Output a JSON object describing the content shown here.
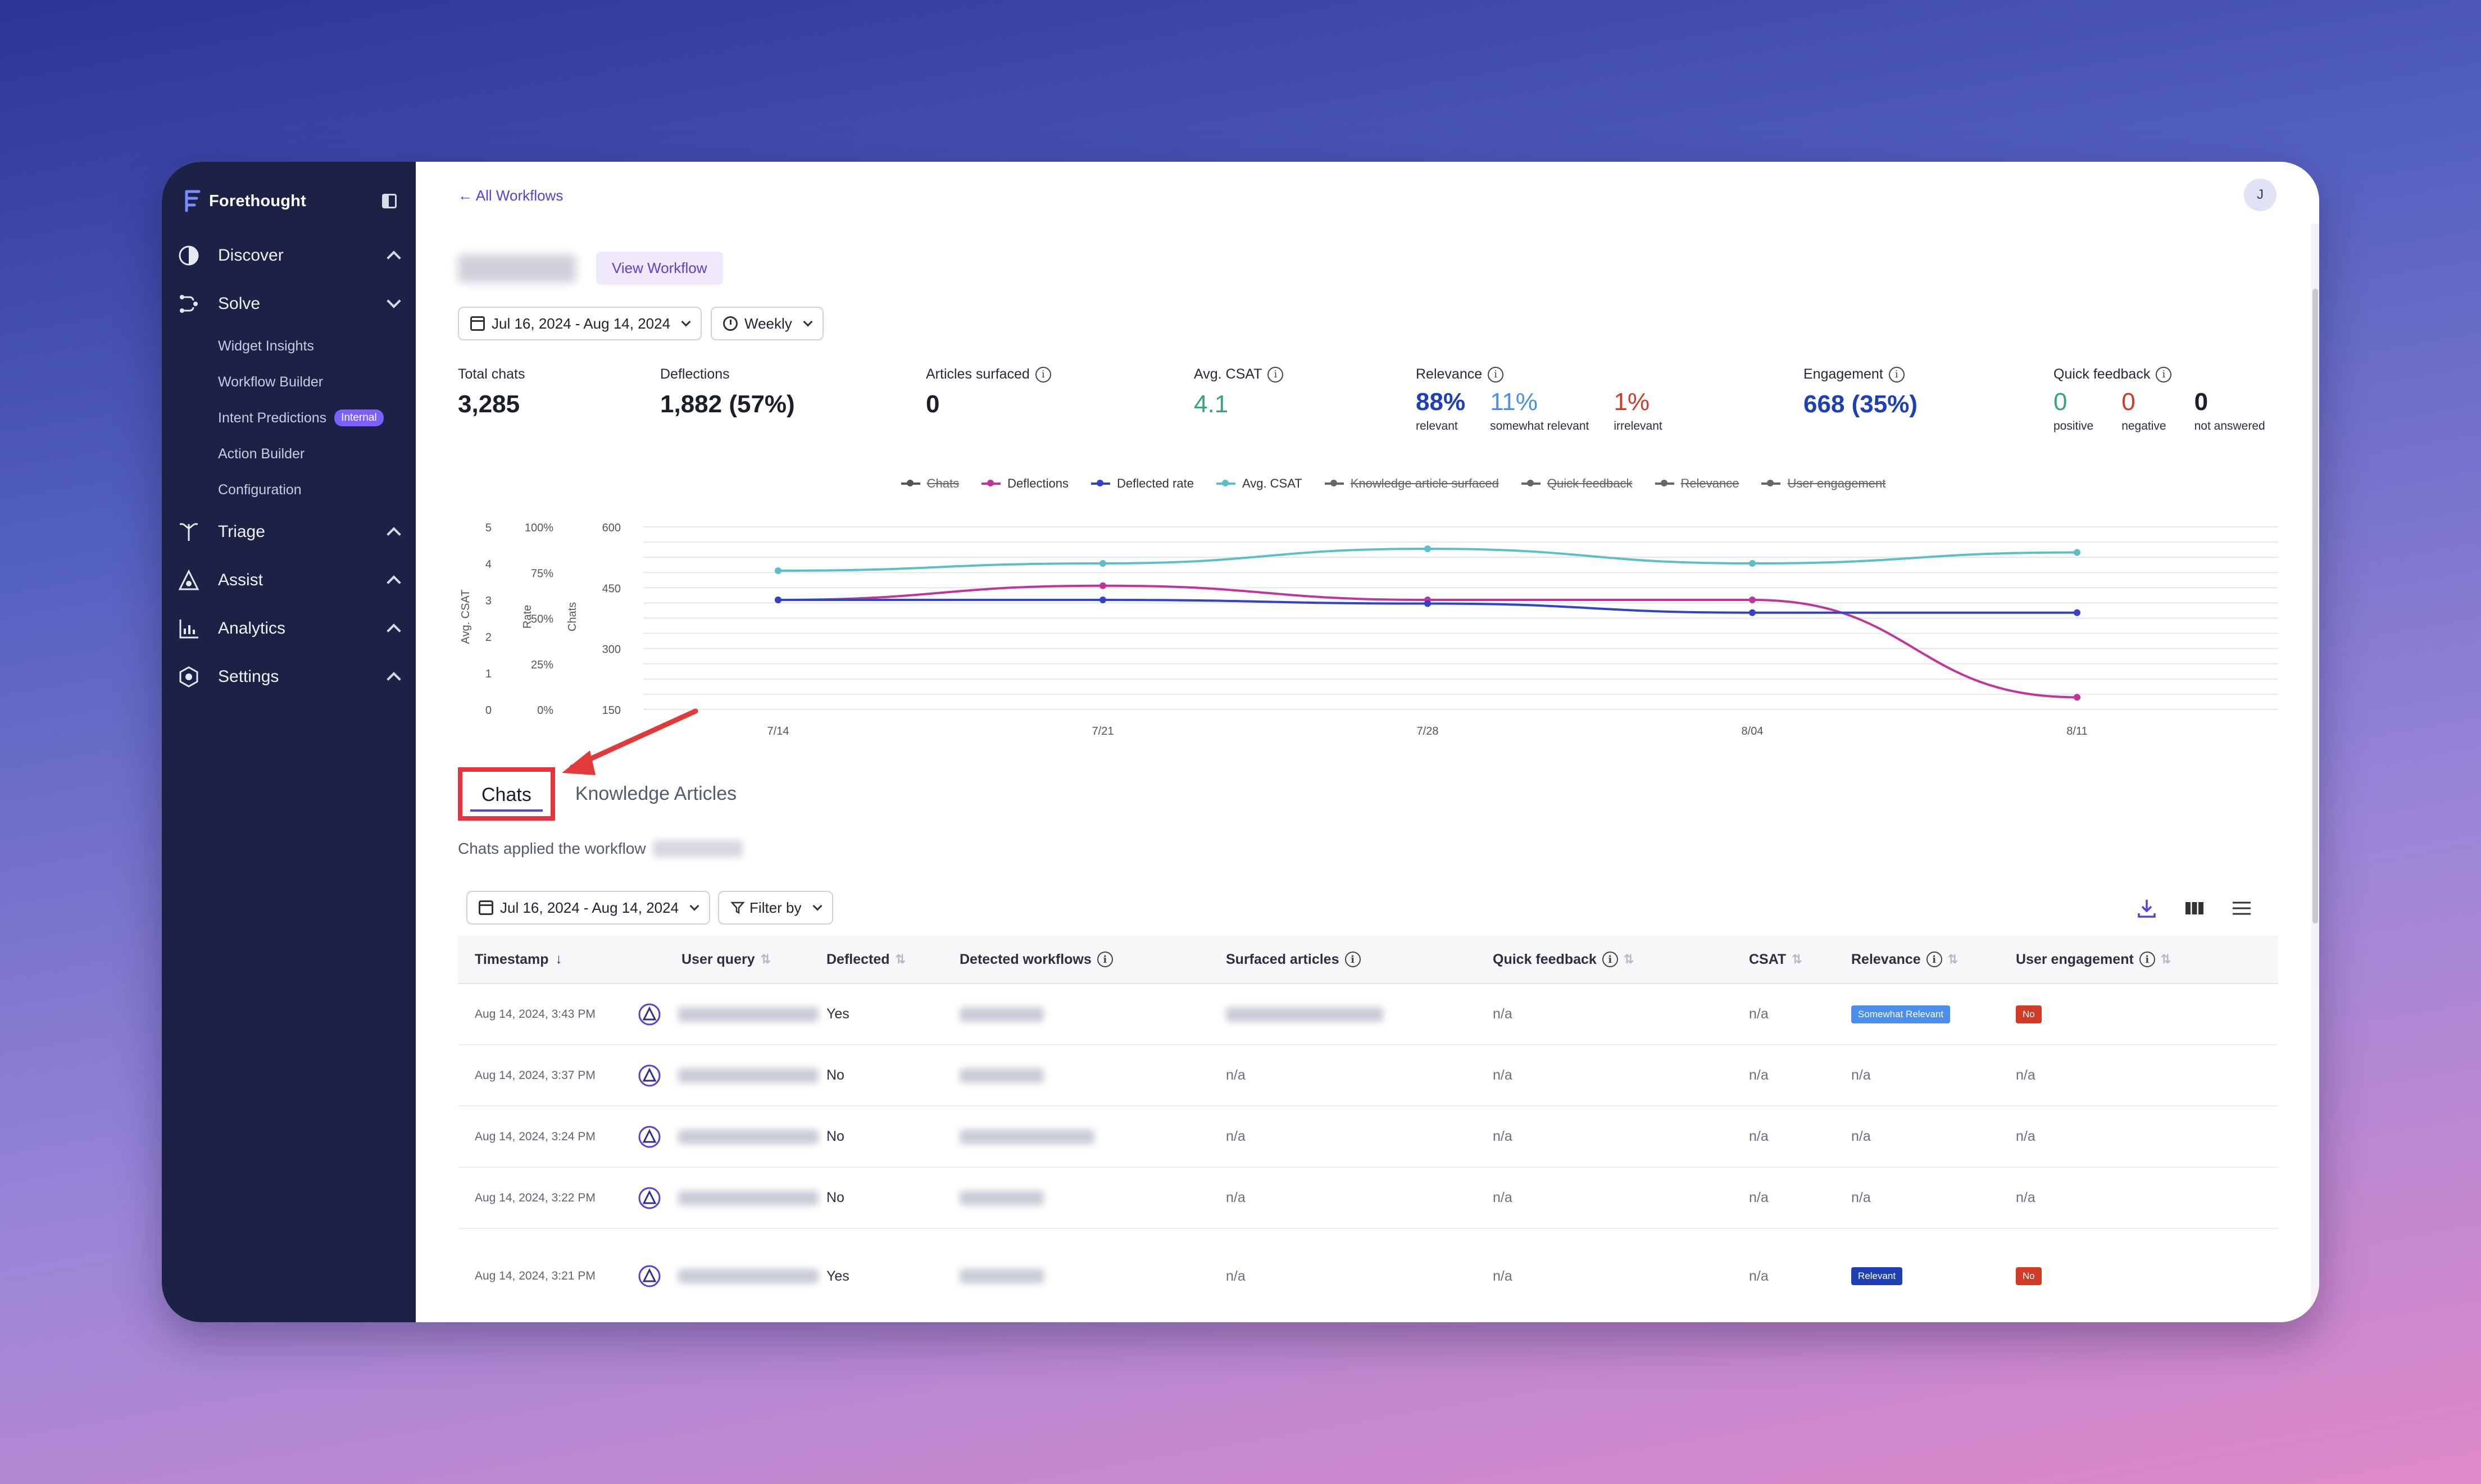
{
  "sidebar": {
    "brand": "Forethought",
    "nav": [
      {
        "label": "Discover",
        "icon": "discover-icon",
        "expanded": false
      },
      {
        "label": "Solve",
        "icon": "solve-icon",
        "expanded": true
      },
      {
        "label": "Triage",
        "icon": "triage-icon",
        "expanded": false
      },
      {
        "label": "Assist",
        "icon": "assist-icon",
        "expanded": false
      },
      {
        "label": "Analytics",
        "icon": "analytics-icon",
        "expanded": false
      },
      {
        "label": "Settings",
        "icon": "settings-icon",
        "expanded": false
      }
    ],
    "solve_items": [
      "Widget Insights",
      "Workflow Builder",
      "Intent Predictions",
      "Action Builder",
      "Configuration"
    ],
    "internal_badge": "Internal"
  },
  "header": {
    "back_link": "← All Workflows",
    "avatar_initial": "J",
    "view_workflow": "View Workflow",
    "date_range": "Jul 16, 2024 - Aug 14, 2024",
    "period": "Weekly"
  },
  "metrics": {
    "total_chats": {
      "label": "Total chats",
      "value": "3,285"
    },
    "deflections": {
      "label": "Deflections",
      "value": "1,882 (57%)"
    },
    "articles_surfaced": {
      "label": "Articles surfaced",
      "value": "0"
    },
    "avg_csat": {
      "label": "Avg. CSAT",
      "value": "4.1"
    },
    "relevance": {
      "label": "Relevance",
      "relevant": "88%",
      "relevant_label": "relevant",
      "somewhat": "11%",
      "somewhat_label": "somewhat relevant",
      "irrelevant": "1%",
      "irrelevant_label": "irrelevant"
    },
    "engagement": {
      "label": "Engagement",
      "value": "668 (35%)"
    },
    "quick_feedback": {
      "label": "Quick feedback",
      "positive": "0",
      "positive_label": "positive",
      "negative": "0",
      "negative_label": "negative",
      "unanswered": "0",
      "unanswered_label": "not answered"
    }
  },
  "colors": {
    "chats": "#555555",
    "deflections": "#c0359a",
    "deflected_rate": "#3343c9",
    "avg_csat": "#5cbfc8",
    "accent": "#5a3fd8",
    "positive": "#3aa37a",
    "negative": "#d13a24",
    "relevant": "#1e3fb5",
    "somewhat": "#4a8ef0"
  },
  "chart_data": {
    "type": "line",
    "title": "",
    "x": [
      "7/14",
      "7/21",
      "7/28",
      "8/04",
      "8/11"
    ],
    "legend": [
      {
        "name": "Chats",
        "active": false
      },
      {
        "name": "Deflections",
        "active": true
      },
      {
        "name": "Deflected rate",
        "active": true
      },
      {
        "name": "Avg. CSAT",
        "active": true
      },
      {
        "name": "Knowledge article surfaced",
        "active": false
      },
      {
        "name": "Quick feedback",
        "active": false
      },
      {
        "name": "Relevance",
        "active": false
      },
      {
        "name": "User engagement",
        "active": false
      }
    ],
    "axes": [
      {
        "label": "Avg. CSAT",
        "ticks": [
          "0",
          "1",
          "2",
          "3",
          "4",
          "5"
        ],
        "range": [
          0,
          5
        ]
      },
      {
        "label": "Rate",
        "ticks": [
          "0%",
          "25%",
          "50%",
          "75%",
          "100%"
        ],
        "range": [
          0,
          100
        ]
      },
      {
        "label": "Chats",
        "ticks": [
          "150",
          "300",
          "450",
          "600"
        ],
        "range": [
          150,
          600
        ]
      }
    ],
    "series": [
      {
        "name": "Deflections",
        "axis": "Chats",
        "values": [
          420,
          455,
          420,
          420,
          180
        ]
      },
      {
        "name": "Deflected rate",
        "axis": "Rate",
        "values": [
          60,
          60,
          58,
          53,
          53
        ]
      },
      {
        "name": "Avg. CSAT",
        "axis": "Avg. CSAT",
        "values": [
          3.8,
          4.0,
          4.4,
          4.0,
          4.3
        ]
      }
    ],
    "grid": true
  },
  "tabs": [
    "Chats",
    "Knowledge Articles"
  ],
  "chats_desc": "Chats applied the workflow",
  "table_toolbar": {
    "date_range": "Jul 16, 2024 - Aug 14, 2024",
    "filter": "Filter by"
  },
  "table": {
    "columns": [
      "Timestamp",
      "User query",
      "Deflected",
      "Detected workflows",
      "Surfaced articles",
      "Quick feedback",
      "CSAT",
      "Relevance",
      "User engagement"
    ],
    "rows": [
      {
        "ts": "Aug 14, 2024, 3:43 PM",
        "deflected": "Yes",
        "surfaced": "",
        "quick": "n/a",
        "csat": "n/a",
        "relevance": "Somewhat Relevant",
        "engagement": "No"
      },
      {
        "ts": "Aug 14, 2024, 3:37 PM",
        "deflected": "No",
        "surfaced": "n/a",
        "quick": "n/a",
        "csat": "n/a",
        "relevance": "n/a",
        "engagement": "n/a"
      },
      {
        "ts": "Aug 14, 2024, 3:24 PM",
        "deflected": "No",
        "surfaced": "n/a",
        "quick": "n/a",
        "csat": "n/a",
        "relevance": "n/a",
        "engagement": "n/a"
      },
      {
        "ts": "Aug 14, 2024, 3:22 PM",
        "deflected": "No",
        "surfaced": "n/a",
        "quick": "n/a",
        "csat": "n/a",
        "relevance": "n/a",
        "engagement": "n/a"
      },
      {
        "ts": "Aug 14, 2024, 3:21 PM",
        "deflected": "Yes",
        "surfaced": "n/a",
        "quick": "n/a",
        "csat": "n/a",
        "relevance": "Relevant",
        "engagement": "No"
      }
    ]
  }
}
